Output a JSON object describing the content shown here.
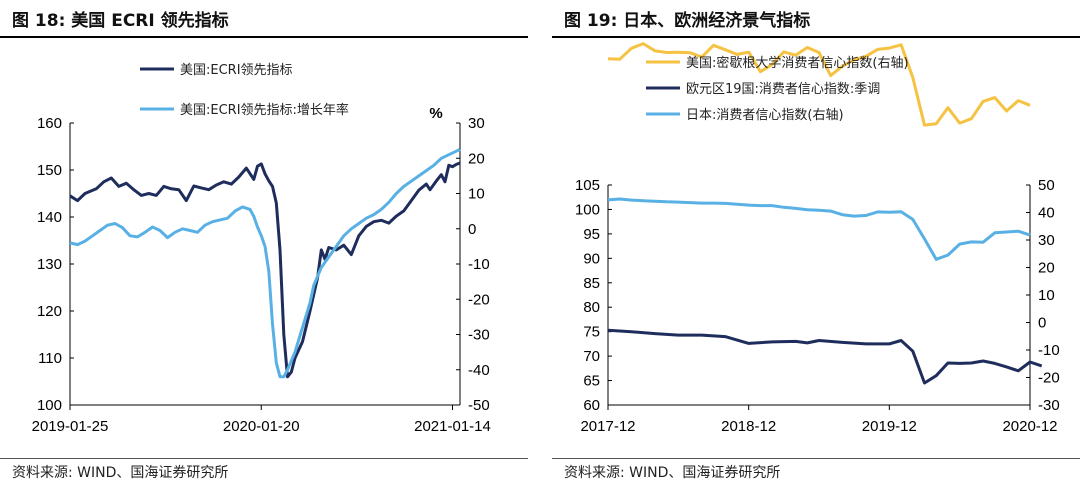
{
  "left": {
    "fig_title": "图 18:  美国 ECRI 领先指标",
    "source": "资料来源:  WIND、国海证券研究所",
    "chart_data": {
      "type": "line",
      "x_tick_labels": [
        "2019-01-25",
        "2020-01-20",
        "2021-01-14"
      ],
      "x_range": [
        0,
        104
      ],
      "x_tick_positions": [
        0,
        51,
        102
      ],
      "y_left": {
        "range": [
          100,
          160
        ],
        "ticks": [
          100,
          110,
          120,
          130,
          140,
          150,
          160
        ]
      },
      "y_right": {
        "range": [
          -50,
          30
        ],
        "ticks": [
          -50,
          -40,
          -30,
          -20,
          -10,
          0,
          10,
          20,
          30
        ],
        "unit": "%"
      },
      "series": [
        {
          "name": "美国:ECRI领先指标",
          "color": "#1f2d5c",
          "axis": "left",
          "points": [
            [
              0,
              144.5
            ],
            [
              2,
              143.5
            ],
            [
              4,
              145
            ],
            [
              7,
              146
            ],
            [
              9,
              147.5
            ],
            [
              11,
              148.3
            ],
            [
              13,
              146.5
            ],
            [
              15,
              147.2
            ],
            [
              17,
              145.8
            ],
            [
              19,
              144.6
            ],
            [
              21,
              145
            ],
            [
              23,
              144.6
            ],
            [
              25,
              146.5
            ],
            [
              27,
              146
            ],
            [
              29,
              145.8
            ],
            [
              31,
              143.5
            ],
            [
              33,
              146.6
            ],
            [
              35,
              146.2
            ],
            [
              37,
              145.8
            ],
            [
              39,
              146.8
            ],
            [
              41,
              147.5
            ],
            [
              43,
              147
            ],
            [
              45,
              148.5
            ],
            [
              47,
              150.4
            ],
            [
              49,
              148
            ],
            [
              50,
              150.8
            ],
            [
              51,
              151.3
            ],
            [
              52,
              149.2
            ],
            [
              53,
              147.7
            ],
            [
              54,
              146.5
            ],
            [
              55,
              143
            ],
            [
              56,
              133
            ],
            [
              57,
              115
            ],
            [
              58,
              106
            ],
            [
              59,
              107
            ],
            [
              60,
              110
            ],
            [
              62,
              113.5
            ],
            [
              64,
              120
            ],
            [
              66,
              127
            ],
            [
              67,
              133
            ],
            [
              68,
              131
            ],
            [
              69,
              133.5
            ],
            [
              71,
              133
            ],
            [
              73,
              134
            ],
            [
              75,
              132
            ],
            [
              77,
              136
            ],
            [
              79,
              138
            ],
            [
              81,
              139
            ],
            [
              83,
              139.3
            ],
            [
              85,
              138.7
            ],
            [
              87,
              140.2
            ],
            [
              89,
              141.3
            ],
            [
              91,
              143.5
            ],
            [
              93,
              145.7
            ],
            [
              95,
              147
            ],
            [
              96,
              145.8
            ],
            [
              98,
              148
            ],
            [
              99,
              149
            ],
            [
              100,
              147.5
            ],
            [
              101,
              151
            ],
            [
              102,
              150.7
            ],
            [
              103,
              151.2
            ],
            [
              104,
              151.5
            ]
          ]
        },
        {
          "name": "美国:ECRI领先指标:增长年率",
          "color": "#58b0e4",
          "axis": "right",
          "points": [
            [
              0,
              -4
            ],
            [
              2,
              -4.5
            ],
            [
              4,
              -3.5
            ],
            [
              6,
              -2
            ],
            [
              8,
              -0.5
            ],
            [
              10,
              1
            ],
            [
              12,
              1.5
            ],
            [
              14,
              0.3
            ],
            [
              16,
              -2
            ],
            [
              18,
              -2.3
            ],
            [
              20,
              -1
            ],
            [
              22,
              0.5
            ],
            [
              24,
              -0.5
            ],
            [
              26,
              -2.5
            ],
            [
              28,
              -1
            ],
            [
              30,
              0
            ],
            [
              32,
              -0.5
            ],
            [
              34,
              -1
            ],
            [
              36,
              1
            ],
            [
              38,
              2
            ],
            [
              40,
              2.5
            ],
            [
              42,
              3
            ],
            [
              44,
              5
            ],
            [
              46,
              6.2
            ],
            [
              48,
              5.5
            ],
            [
              49,
              3.5
            ],
            [
              50,
              0.5
            ],
            [
              51,
              -2
            ],
            [
              52,
              -5
            ],
            [
              53,
              -12
            ],
            [
              54,
              -27
            ],
            [
              55,
              -38
            ],
            [
              56,
              -42
            ],
            [
              57,
              -42
            ],
            [
              58,
              -40
            ],
            [
              60,
              -35
            ],
            [
              62,
              -28
            ],
            [
              64,
              -21
            ],
            [
              65,
              -16
            ],
            [
              67,
              -11
            ],
            [
              69,
              -8
            ],
            [
              71,
              -5
            ],
            [
              73,
              -2
            ],
            [
              75,
              0
            ],
            [
              77,
              1.5
            ],
            [
              79,
              3
            ],
            [
              81,
              4
            ],
            [
              83,
              5.5
            ],
            [
              85,
              7.5
            ],
            [
              87,
              10
            ],
            [
              89,
              12
            ],
            [
              91,
              13.5
            ],
            [
              93,
              15
            ],
            [
              95,
              16.5
            ],
            [
              97,
              18
            ],
            [
              99,
              20
            ],
            [
              101,
              21
            ],
            [
              103,
              22
            ],
            [
              104,
              22.5
            ]
          ]
        }
      ]
    }
  },
  "right": {
    "fig_title": "图 19:  日本、欧洲经济景气指标",
    "source": "资料来源:  WIND、国海证券研究所",
    "chart_data": {
      "type": "line",
      "x_tick_labels": [
        "2017-12",
        "2018-12",
        "2019-12",
        "2020-12"
      ],
      "x_range": [
        0,
        36
      ],
      "x_tick_positions": [
        0,
        12,
        24,
        36
      ],
      "y_left": {
        "range": [
          60,
          105
        ],
        "ticks": [
          60,
          65,
          70,
          75,
          80,
          85,
          90,
          95,
          100,
          105
        ]
      },
      "y_right": {
        "range": [
          -30,
          50
        ],
        "ticks": [
          -30,
          -20,
          -10,
          0,
          10,
          20,
          30,
          40,
          50
        ]
      },
      "series": [
        {
          "name": "美国:密歇根大学消费者信心指数(右轴)",
          "color": "#f5c242",
          "axis": "right",
          "points": [
            [
              0,
              95.9
            ],
            [
              1,
              95.7
            ],
            [
              2,
              99.7
            ],
            [
              3,
              101.4
            ],
            [
              4,
              98.8
            ],
            [
              5,
              98.2
            ],
            [
              6,
              98.3
            ],
            [
              7,
              98.1
            ],
            [
              8,
              96.5
            ],
            [
              9,
              100.8
            ],
            [
              10,
              99.2
            ],
            [
              11,
              97.5
            ],
            [
              12,
              98.3
            ],
            [
              13,
              91.2
            ],
            [
              14,
              93.8
            ],
            [
              15,
              98.4
            ],
            [
              16,
              97.2
            ],
            [
              17,
              100
            ],
            [
              18,
              98.2
            ],
            [
              19,
              89.8
            ],
            [
              20,
              93.2
            ],
            [
              21,
              95.5
            ],
            [
              22,
              96.8
            ],
            [
              23,
              99.3
            ],
            [
              24,
              99.8
            ],
            [
              25,
              101
            ],
            [
              26,
              89.1
            ],
            [
              27,
              71.8
            ],
            [
              28,
              72.3
            ],
            [
              29,
              78.1
            ],
            [
              30,
              72.5
            ],
            [
              31,
              74.1
            ],
            [
              32,
              80.4
            ],
            [
              33,
              81.8
            ],
            [
              34,
              76.9
            ],
            [
              35,
              80.7
            ],
            [
              36,
              79
            ]
          ]
        },
        {
          "name": "欧元区19国:消费者信心指数:季调",
          "color": "#1f2d5c",
          "axis": "left",
          "points": [
            [
              0,
              75.3
            ],
            [
              2,
              75
            ],
            [
              4,
              74.6
            ],
            [
              6,
              74.3
            ],
            [
              8,
              74.3
            ],
            [
              10,
              74
            ],
            [
              12,
              72.6
            ],
            [
              14,
              72.9
            ],
            [
              16,
              73
            ],
            [
              17,
              72.7
            ],
            [
              18,
              73.2
            ],
            [
              20,
              72.8
            ],
            [
              22,
              72.5
            ],
            [
              24,
              72.5
            ],
            [
              25,
              73.2
            ],
            [
              26,
              71
            ],
            [
              27,
              64.5
            ],
            [
              28,
              66
            ],
            [
              29,
              68.6
            ],
            [
              30,
              68.5
            ],
            [
              31,
              68.6
            ],
            [
              32,
              69
            ],
            [
              33,
              68.5
            ],
            [
              34,
              67.8
            ],
            [
              35,
              67
            ],
            [
              36,
              68.8
            ],
            [
              37,
              68
            ]
          ]
        },
        {
          "name": "日本:消费者信心指数(右轴)",
          "color": "#58b0e4",
          "axis": "right",
          "points": [
            [
              0,
              44.6
            ],
            [
              1,
              44.9
            ],
            [
              2,
              44.5
            ],
            [
              3,
              44.3
            ],
            [
              4,
              44.1
            ],
            [
              5,
              43.9
            ],
            [
              6,
              43.8
            ],
            [
              7,
              43.6
            ],
            [
              8,
              43.4
            ],
            [
              9,
              43.4
            ],
            [
              10,
              43.3
            ],
            [
              11,
              43
            ],
            [
              12,
              42.7
            ],
            [
              13,
              42.5
            ],
            [
              14,
              42.5
            ],
            [
              15,
              41.9
            ],
            [
              16,
              41.5
            ],
            [
              17,
              41
            ],
            [
              18,
              40.8
            ],
            [
              19,
              40.5
            ],
            [
              20,
              39.2
            ],
            [
              21,
              38.7
            ],
            [
              22,
              38.9
            ],
            [
              23,
              40.2
            ],
            [
              24,
              40.1
            ],
            [
              25,
              40.3
            ],
            [
              26,
              37.5
            ],
            [
              27,
              30.4
            ],
            [
              28,
              23
            ],
            [
              29,
              24.5
            ],
            [
              30,
              28.5
            ],
            [
              31,
              29.3
            ],
            [
              32,
              29.2
            ],
            [
              33,
              32.6
            ],
            [
              34,
              32.9
            ],
            [
              35,
              33.2
            ],
            [
              36,
              31.8
            ]
          ]
        }
      ]
    }
  }
}
